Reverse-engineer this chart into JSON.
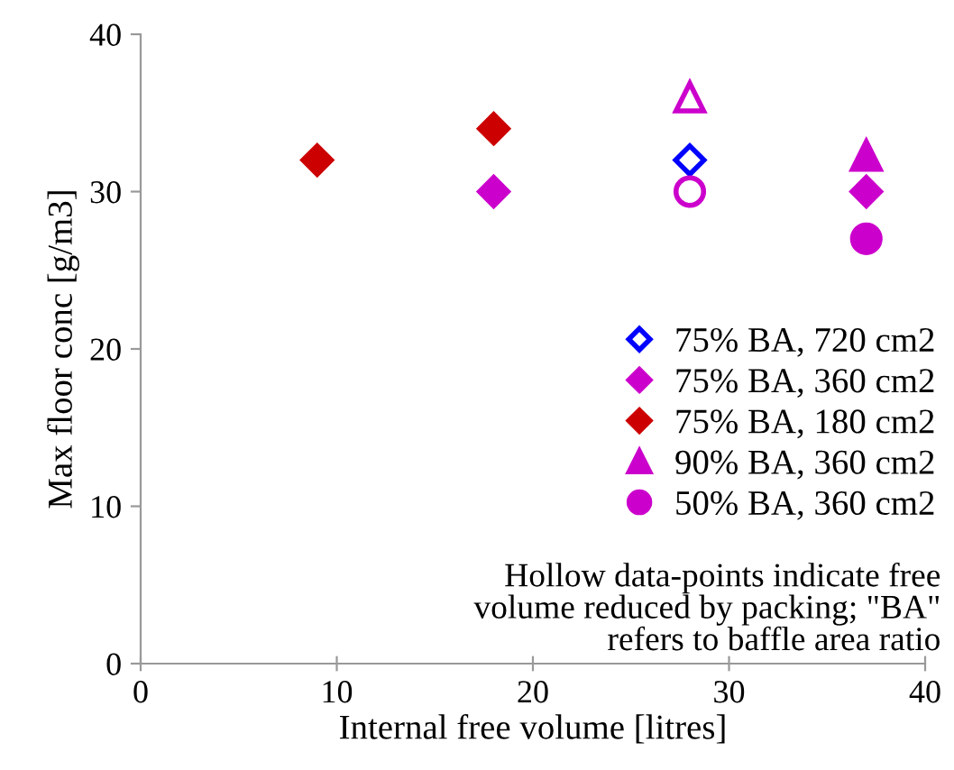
{
  "chart_data": {
    "type": "scatter",
    "xlabel": "Internal free volume [litres]",
    "ylabel": "Max floor conc [g/m3]",
    "xlim": [
      0,
      40
    ],
    "xticks": [
      0,
      10,
      20,
      30,
      40
    ],
    "ylim": [
      0,
      40
    ],
    "yticks": [
      0,
      10,
      20,
      30,
      40
    ],
    "grid": false,
    "legend": "right",
    "series": [
      {
        "name": "75% BA, 720 cm2",
        "color": "#0000ff",
        "colors": [
          "#ffffff"
        ],
        "marker": "diamond",
        "x": [
          28
        ],
        "values": [
          32
        ]
      },
      {
        "name": "75% BA, 360 cm2",
        "color": "#cc00cc",
        "marker": "diamond",
        "x": [
          18,
          37
        ],
        "values": [
          30,
          30
        ]
      },
      {
        "name": "75% BA, 180 cm2",
        "color": "#cc0000",
        "marker": "diamond",
        "x": [
          9,
          18
        ],
        "values": [
          32,
          34
        ]
      },
      {
        "name": "90% BA, 360 cm2",
        "color": "#cc00cc",
        "marker": "triangle",
        "x": [
          37
        ],
        "values": [
          32.3
        ]
      },
      {
        "name": "50% BA, 360 cm2",
        "color": "#cc00cc",
        "marker": "circle",
        "x": [
          37
        ],
        "values": [
          27
        ]
      },
      {
        "color": "#cc00cc",
        "colors": [
          "#ffffff"
        ],
        "marker": "triangle",
        "x": [
          28
        ],
        "values": [
          36
        ]
      },
      {
        "color": "#cc00cc",
        "colors": [
          "#ffffff"
        ],
        "marker": "circle",
        "x": [
          28
        ],
        "values": [
          30
        ]
      }
    ],
    "annotations": [
      "Hollow data-points indicate free\nvolume reduced by packing; \"BA\"\nrefers to baffle area ratio"
    ]
  }
}
